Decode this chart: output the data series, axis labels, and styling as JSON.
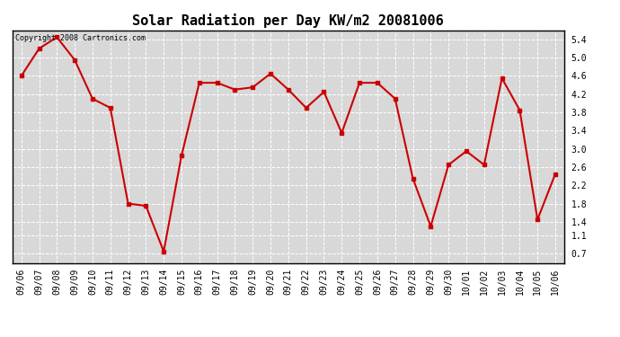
{
  "title": "Solar Radiation per Day KW/m2 20081006",
  "copyright_text": "Copyright 2008 Cartronics.com",
  "dates": [
    "09/06",
    "09/07",
    "09/08",
    "09/09",
    "09/10",
    "09/11",
    "09/12",
    "09/13",
    "09/14",
    "09/15",
    "09/16",
    "09/17",
    "09/18",
    "09/19",
    "09/20",
    "09/21",
    "09/22",
    "09/23",
    "09/24",
    "09/25",
    "09/26",
    "09/27",
    "09/28",
    "09/29",
    "09/30",
    "10/01",
    "10/02",
    "10/03",
    "10/04",
    "10/05",
    "10/06"
  ],
  "values": [
    4.6,
    5.2,
    5.45,
    4.95,
    4.1,
    3.9,
    1.8,
    1.75,
    0.75,
    2.85,
    4.45,
    4.45,
    4.3,
    4.35,
    4.65,
    4.3,
    3.9,
    4.25,
    3.35,
    4.45,
    4.45,
    4.1,
    2.35,
    1.3,
    2.65,
    2.95,
    2.65,
    4.55,
    3.85,
    1.45,
    2.45
  ],
  "line_color": "#cc0000",
  "marker": "s",
  "marker_size": 2.5,
  "line_width": 1.5,
  "ylim": [
    0.5,
    5.6
  ],
  "yticks": [
    0.7,
    1.1,
    1.4,
    1.8,
    2.2,
    2.6,
    3.0,
    3.4,
    3.8,
    4.2,
    4.6,
    5.0,
    5.4
  ],
  "background_color": "#ffffff",
  "plot_bg_color": "#d8d8d8",
  "grid_color": "#ffffff",
  "title_fontsize": 11,
  "tick_fontsize": 7,
  "copyright_fontsize": 6
}
